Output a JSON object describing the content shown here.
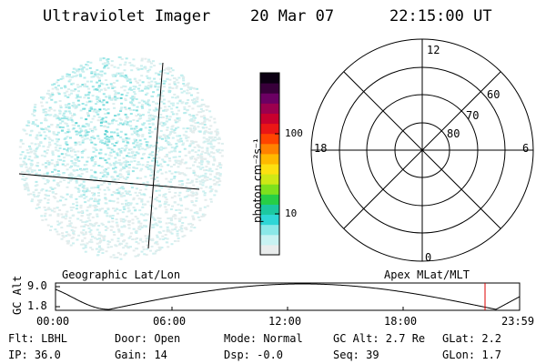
{
  "header": {
    "instrument": "Ultraviolet Imager",
    "date": "20 Mar 07",
    "time": "22:15:00 UT"
  },
  "colorbar": {
    "unit_label": "photon cm⁻²s⁻¹",
    "ticks": [
      "100",
      "10"
    ],
    "colors": [
      "#e9ecec",
      "#c8f2f2",
      "#8ae8e8",
      "#2ed6d6",
      "#1cc8a0",
      "#27cf46",
      "#7ee11d",
      "#cfe816",
      "#fde010",
      "#ffb900",
      "#ff8200",
      "#ff4400",
      "#ea1616",
      "#c8002e",
      "#9c004e",
      "#6c0063",
      "#38003a",
      "#0c0012"
    ]
  },
  "polar_plot": {
    "mlt_labels": {
      "top": "12",
      "left": "18",
      "right": "6",
      "bottom": "0"
    },
    "lat_labels": [
      "60",
      "70",
      "80"
    ]
  },
  "timeline": {
    "left_title": "Geographic Lat/Lon",
    "right_title": "Apex MLat/MLT",
    "y_axis_label": "GC Alt",
    "y_ticks": [
      "9.0",
      "1.8"
    ],
    "x_ticks": [
      "00:00",
      "06:00",
      "12:00",
      "18:00",
      "23:59"
    ],
    "marker_color": "#dd0000"
  },
  "status": {
    "flt": "Flt: LBHL",
    "ip": "IP: 36.0",
    "door": "Door: Open",
    "gain": "Gain: 14",
    "mode": "Mode: Normal",
    "dsp": "Dsp:   -0.0",
    "gc_alt": "GC Alt: 2.7 Re",
    "seq": "Seq: 39",
    "glat": "GLat:   2.2",
    "glon": "GLon:   1.7"
  }
}
